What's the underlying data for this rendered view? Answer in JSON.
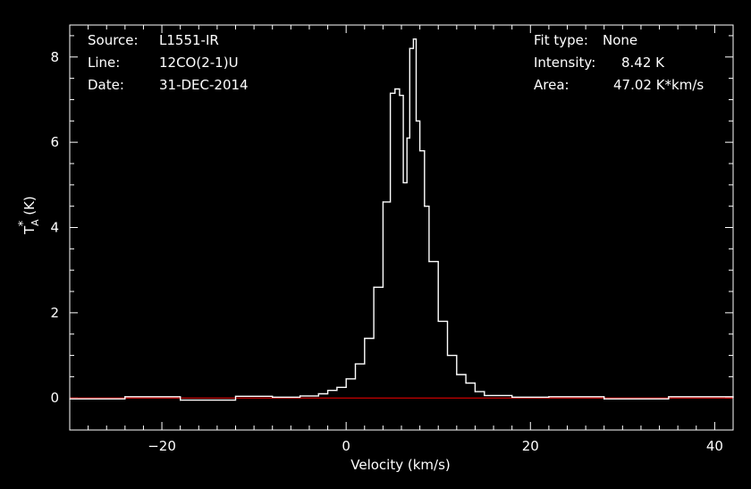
{
  "chart_data": {
    "type": "line",
    "style": "step",
    "xlabel": "Velocity (km/s)",
    "ylabel_main": "T",
    "ylabel_sub": "A",
    "ylabel_sup": "*",
    "ylabel_unit": "(K)",
    "xlim": [
      -30,
      42
    ],
    "ylim": [
      -0.75,
      8.75
    ],
    "xticks": [
      -20,
      0,
      20,
      40
    ],
    "yticks": [
      0,
      2,
      4,
      6,
      8
    ],
    "grid": false,
    "colors": {
      "background": "#000000",
      "spectrum": "#ffffff",
      "baseline": "#cc0000",
      "frame": "#ffffff"
    },
    "annotations_left": [
      {
        "key": "Source:",
        "value": "L1551-IR"
      },
      {
        "key": "Line:",
        "value": "12CO(2-1)U"
      },
      {
        "key": "Date:",
        "value": "31-DEC-2014"
      }
    ],
    "annotations_right": [
      {
        "key": "Fit type:",
        "value": "None"
      },
      {
        "key": "Intensity:",
        "value": "8.42 K"
      },
      {
        "key": "Area:",
        "value": "47.02 K*km/s"
      }
    ],
    "baseline": {
      "name": "baseline fit",
      "y": 0.0
    },
    "series": [
      {
        "name": "spectrum",
        "points": [
          [
            -30,
            -0.02
          ],
          [
            -24,
            0.03
          ],
          [
            -18,
            -0.05
          ],
          [
            -12,
            0.04
          ],
          [
            -8,
            0.02
          ],
          [
            -5,
            0.05
          ],
          [
            -3,
            0.1
          ],
          [
            -2,
            0.18
          ],
          [
            -1,
            0.25
          ],
          [
            0,
            0.45
          ],
          [
            1,
            0.8
          ],
          [
            2,
            1.4
          ],
          [
            3,
            2.6
          ],
          [
            4,
            4.6
          ],
          [
            4.8,
            7.15
          ],
          [
            5.3,
            7.25
          ],
          [
            5.8,
            7.1
          ],
          [
            6.2,
            5.05
          ],
          [
            6.6,
            6.1
          ],
          [
            6.9,
            8.2
          ],
          [
            7.3,
            8.42
          ],
          [
            7.6,
            6.5
          ],
          [
            8,
            5.8
          ],
          [
            8.5,
            4.5
          ],
          [
            9,
            3.2
          ],
          [
            10,
            1.8
          ],
          [
            11,
            1.0
          ],
          [
            12,
            0.55
          ],
          [
            13,
            0.35
          ],
          [
            14,
            0.15
          ],
          [
            15,
            0.06
          ],
          [
            18,
            0.02
          ],
          [
            22,
            0.03
          ],
          [
            28,
            -0.02
          ],
          [
            35,
            0.03
          ],
          [
            42,
            0.01
          ]
        ]
      }
    ]
  }
}
